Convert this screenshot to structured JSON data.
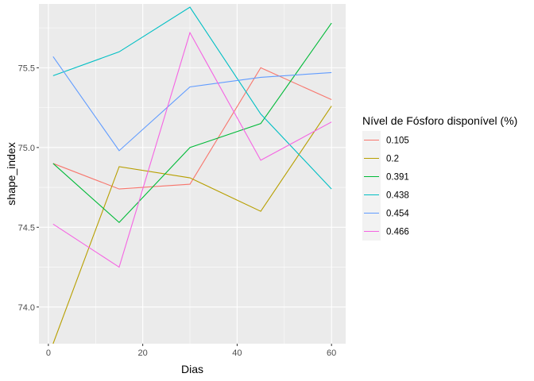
{
  "chart_data": {
    "type": "line",
    "xlabel": "Dias",
    "ylabel": "shape_index",
    "xlim": [
      -2,
      63
    ],
    "ylim": [
      73.77,
      75.9
    ],
    "xticks": [
      0,
      20,
      40,
      60
    ],
    "xtick_labels": [
      "0",
      "20",
      "40",
      "60"
    ],
    "yticks": [
      74.0,
      74.5,
      75.0,
      75.5
    ],
    "ytick_labels": [
      "74.0",
      "74.5",
      "75.0",
      "75.5"
    ],
    "grid": true,
    "background": "#ebebeb",
    "legend_position": "right",
    "legend_title": "Nível de Fósforo disponível (%)",
    "x": [
      1,
      15,
      30,
      45,
      60
    ],
    "series": [
      {
        "name": "0.105",
        "color": "#F8766D",
        "values": [
          74.9,
          74.74,
          74.77,
          75.5,
          75.3
        ]
      },
      {
        "name": "0.2",
        "color": "#B79F00",
        "values": [
          73.77,
          74.88,
          74.81,
          74.6,
          75.26
        ]
      },
      {
        "name": "0.391",
        "color": "#00BA38",
        "values": [
          74.9,
          74.53,
          75.0,
          75.15,
          75.78
        ]
      },
      {
        "name": "0.438",
        "color": "#00BFC4",
        "values": [
          75.45,
          75.6,
          75.88,
          75.21,
          74.74
        ]
      },
      {
        "name": "0.454",
        "color": "#619CFF",
        "values": [
          75.57,
          74.98,
          75.38,
          75.44,
          75.47
        ]
      },
      {
        "name": "0.466",
        "color": "#F564E3",
        "values": [
          74.52,
          74.25,
          75.72,
          74.92,
          75.16
        ]
      }
    ]
  }
}
